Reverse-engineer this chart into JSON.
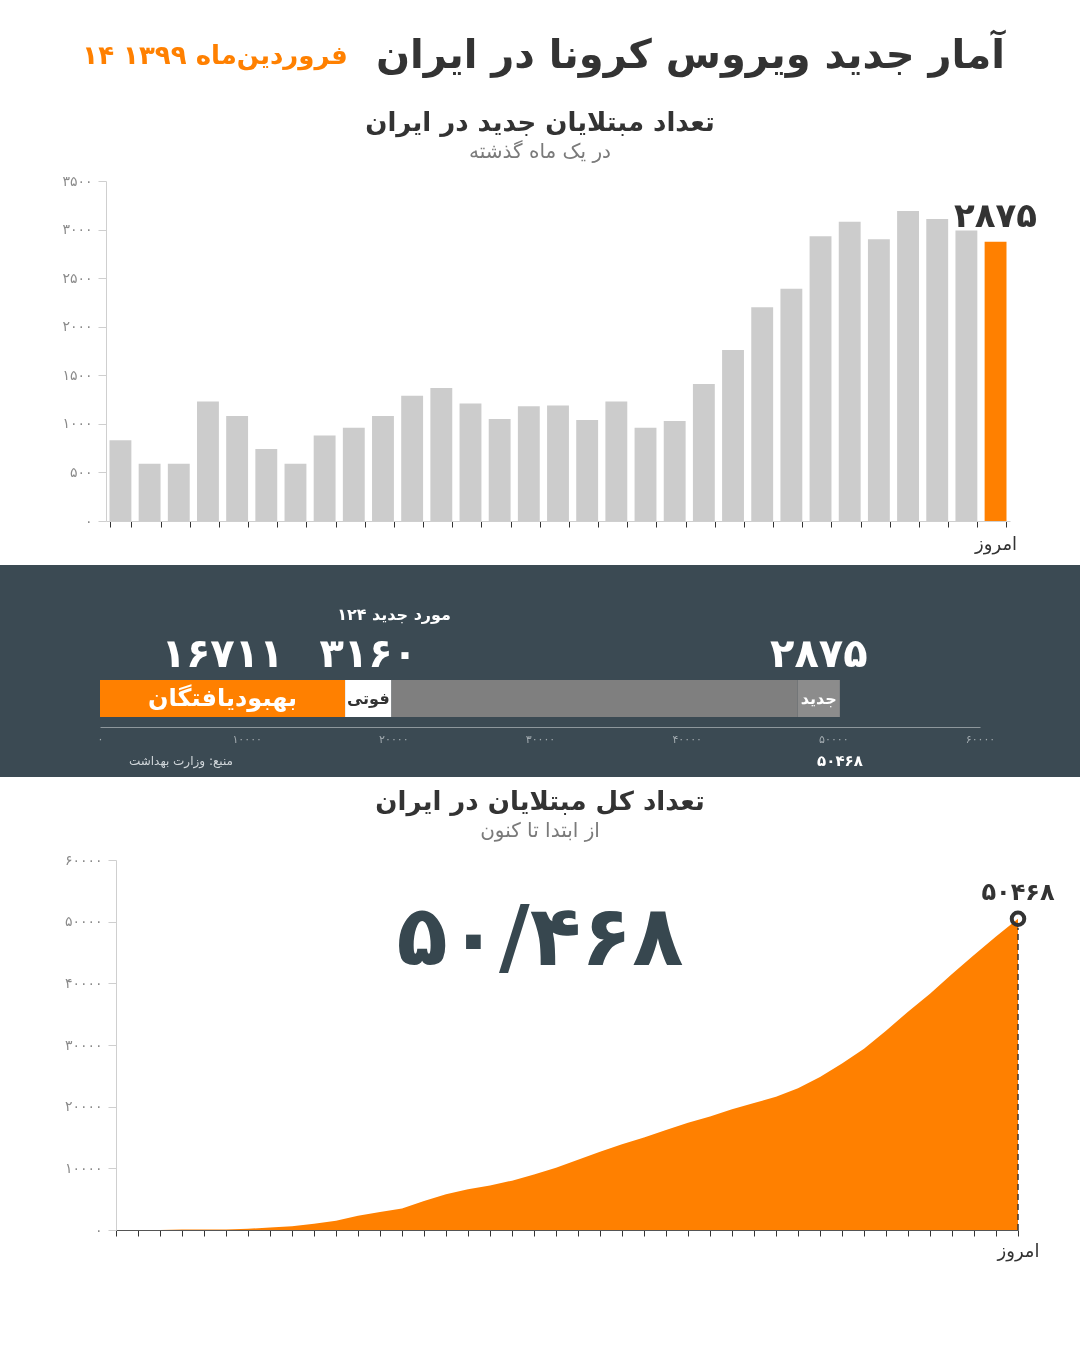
{
  "chart_data": [
    {
      "type": "other",
      "title": "آمار جدید ویروس کرونا در ایران",
      "subtitle": "۱۴ فروردین‌ماه ۱۳۹۹"
    },
    {
      "type": "bar",
      "title": "تعداد مبتلایان جدید در ایران",
      "subtitle": "در یک ماه گذشته",
      "categories": [
        null,
        null,
        null,
        null,
        null,
        null,
        null,
        null,
        null,
        null,
        null,
        null,
        null,
        null,
        null,
        null,
        null,
        null,
        null,
        null,
        null,
        null,
        null,
        null,
        null,
        null,
        null,
        null,
        null,
        null,
        "امروز"
      ],
      "values": [
        830,
        590,
        590,
        1230,
        1080,
        740,
        590,
        880,
        960,
        1080,
        1290,
        1370,
        1210,
        1050,
        1180,
        1190,
        1040,
        1230,
        960,
        1030,
        1410,
        1760,
        2200,
        2390,
        2930,
        3080,
        2900,
        3190,
        3110,
        2990,
        2875
      ],
      "colors": [
        "#cccccc",
        "#cccccc",
        "#cccccc",
        "#cccccc",
        "#cccccc",
        "#cccccc",
        "#cccccc",
        "#cccccc",
        "#cccccc",
        "#cccccc",
        "#cccccc",
        "#cccccc",
        "#cccccc",
        "#cccccc",
        "#cccccc",
        "#cccccc",
        "#cccccc",
        "#cccccc",
        "#cccccc",
        "#cccccc",
        "#cccccc",
        "#cccccc",
        "#cccccc",
        "#cccccc",
        "#cccccc",
        "#cccccc",
        "#cccccc",
        "#cccccc",
        "#cccccc",
        "#cccccc",
        "#ff8000"
      ],
      "value_labels": [
        null,
        null,
        null,
        null,
        null,
        null,
        null,
        null,
        null,
        null,
        null,
        null,
        null,
        null,
        null,
        null,
        null,
        null,
        null,
        null,
        null,
        null,
        null,
        null,
        null,
        null,
        null,
        null,
        null,
        null,
        "۲۸۷۵"
      ],
      "ylim": [
        0,
        3500
      ],
      "yticks": [
        {
          "value": 0,
          "label": "۰"
        },
        {
          "value": 500,
          "label": "۵۰۰"
        },
        {
          "value": 1000,
          "label": "۱۰۰۰"
        },
        {
          "value": 1500,
          "label": "۱۵۰۰"
        },
        {
          "value": 2000,
          "label": "۲۰۰۰"
        },
        {
          "value": 2500,
          "label": "۲۵۰۰"
        },
        {
          "value": 3000,
          "label": "۳۰۰۰"
        },
        {
          "value": 3500,
          "label": "۳۵۰۰"
        }
      ]
    },
    {
      "type": "bar",
      "orientation": "horizontal",
      "stacked": true,
      "categories": [
        null
      ],
      "series": [
        {
          "name": "بهبودیافتگان",
          "color": "#ff8000",
          "values": [
            16711
          ],
          "value_labels": [
            "۱۶۷۱۱"
          ]
        },
        {
          "name": "فوتی",
          "color": "#ffffff",
          "values": [
            3160
          ],
          "value_labels": [
            "۳۱۶۰"
          ]
        },
        {
          "color": "#7f7f7f",
          "values": [
            27700
          ]
        },
        {
          "name": "جدید",
          "color": "#8c8c8c",
          "values": [
            2875
          ],
          "value_labels": [
            "۲۸۷۵"
          ]
        }
      ],
      "xlim": [
        0,
        60000
      ],
      "xticks": [
        {
          "value": 0,
          "label": "۰"
        },
        {
          "value": 10000,
          "label": "۱۰۰۰۰"
        },
        {
          "value": 20000,
          "label": "۲۰۰۰۰"
        },
        {
          "value": 30000,
          "label": "۳۰۰۰۰"
        },
        {
          "value": 40000,
          "label": "۴۰۰۰۰"
        },
        {
          "value": 50000,
          "label": "۵۰۰۰۰"
        },
        {
          "value": 60000,
          "label": "۶۰۰۰۰"
        }
      ],
      "annotations": [
        "۱۲۴ مورد جدید",
        "منبع: وزارت بهداشت",
        "۵۰۴۶۸"
      ]
    },
    {
      "type": "area",
      "title": "تعداد کل مبتلایان در ایران",
      "subtitle": "از ابتدا تا کنون",
      "categories": [
        null,
        null,
        null,
        null,
        null,
        null,
        null,
        null,
        null,
        null,
        null,
        null,
        null,
        null,
        null,
        null,
        null,
        null,
        null,
        null,
        null,
        null,
        null,
        null,
        null,
        null,
        null,
        null,
        null,
        null,
        null,
        null,
        null,
        null,
        null,
        null,
        null,
        null,
        null,
        null,
        null,
        "امروز"
      ],
      "series": [
        {
          "color": "#ff8000",
          "values": [
            0,
            0,
            0,
            100,
            100,
            100,
            200,
            400,
            600,
            1000,
            1500,
            2300,
            2900,
            3500,
            4700,
            5800,
            6600,
            7200,
            8000,
            9000,
            10100,
            11400,
            12700,
            13900,
            15000,
            16200,
            17400,
            18400,
            19600,
            20600,
            21600,
            23000,
            24800,
            27000,
            29400,
            32300,
            35400,
            38300,
            41500,
            44600,
            47600,
            50468
          ]
        },
        {
          "type": "scatter",
          "x": [
            "امروز"
          ],
          "color": "#333333",
          "values": [
            50468
          ],
          "value_labels": [
            "۵۰۴۶۸"
          ]
        }
      ],
      "ylim": [
        0,
        60000
      ],
      "yticks": [
        {
          "value": 0,
          "label": "۰"
        },
        {
          "value": 10000,
          "label": "۱۰۰۰۰"
        },
        {
          "value": 20000,
          "label": "۲۰۰۰۰"
        },
        {
          "value": 30000,
          "label": "۳۰۰۰۰"
        },
        {
          "value": 40000,
          "label": "۴۰۰۰۰"
        },
        {
          "value": 50000,
          "label": "۵۰۰۰۰"
        },
        {
          "value": 60000,
          "label": "۶۰۰۰۰"
        }
      ],
      "ref_lines": [
        {
          "axis": "x",
          "value": "امروز",
          "line_style": "dashed",
          "color": "#333333"
        }
      ],
      "annotations": [
        "۵۰/۴۶۸"
      ]
    }
  ]
}
